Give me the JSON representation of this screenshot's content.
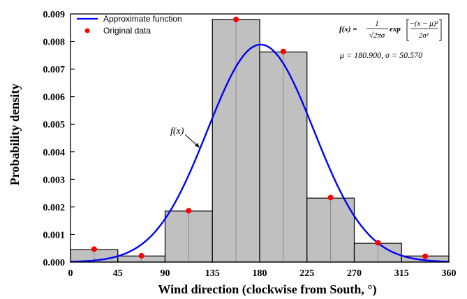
{
  "chart_data": {
    "type": "bar",
    "xlabel": "Wind direction (clockwise from South, °)",
    "ylabel": "Probability density",
    "xlim": [
      0,
      360
    ],
    "ylim": [
      0,
      0.009
    ],
    "x_ticks": [
      "0",
      "45",
      "90",
      "135",
      "180",
      "225",
      "270",
      "315",
      "360"
    ],
    "y_ticks": [
      "0.000",
      "0.001",
      "0.002",
      "0.003",
      "0.004",
      "0.005",
      "0.006",
      "0.007",
      "0.008",
      "0.009"
    ],
    "bar_color": "#c0c0c0",
    "bars": [
      {
        "x0": 0,
        "x1": 45,
        "value": 0.00045
      },
      {
        "x0": 45,
        "x1": 90,
        "value": 0.00022
      },
      {
        "x0": 90,
        "x1": 135,
        "value": 0.00185
      },
      {
        "x0": 135,
        "x1": 180,
        "value": 0.0088
      },
      {
        "x0": 180,
        "x1": 225,
        "value": 0.00762
      },
      {
        "x0": 225,
        "x1": 270,
        "value": 0.00232
      },
      {
        "x0": 270,
        "x1": 315,
        "value": 0.00068
      },
      {
        "x0": 315,
        "x1": 360,
        "value": 0.00022
      }
    ],
    "series": [
      {
        "name": "Approximate function",
        "kind": "line",
        "color": "#0000ff",
        "mu": 180.9,
        "sigma": 50.57
      },
      {
        "name": "Original data",
        "kind": "scatter",
        "color": "#ff0000",
        "x": [
          22.5,
          67.5,
          112.5,
          157.5,
          202.5,
          247.5,
          292.5,
          337.5
        ],
        "y": [
          0.00047,
          0.00023,
          0.00186,
          0.0088,
          0.00764,
          0.00234,
          0.0007,
          0.00021
        ]
      }
    ],
    "legend_position": "top-left",
    "annotations": {
      "curve_label": "f(x)",
      "formula_lhs": "f(x) =",
      "formula_num": "1",
      "formula_den": "√2πσ",
      "formula_exp": "exp",
      "formula_inner_num": "−(x − μ)²",
      "formula_inner_den": "2σ²",
      "params": "μ = 180.900,  σ = 50.570"
    }
  }
}
